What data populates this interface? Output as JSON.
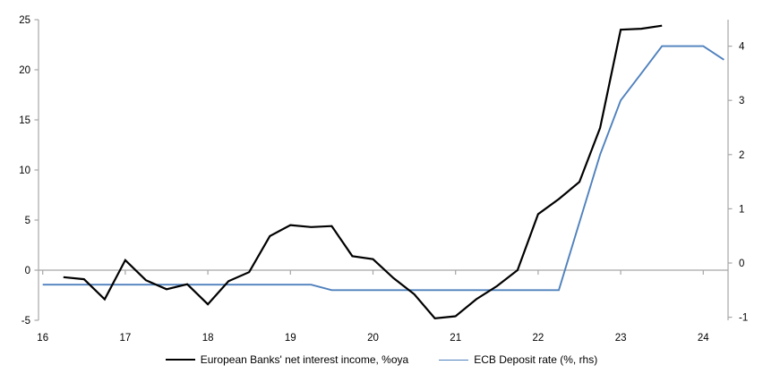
{
  "chart_data": {
    "type": "line",
    "title": "",
    "xlabel": "",
    "ylabel_left": "",
    "ylabel_right": "",
    "x_axis": {
      "tick_labels": [
        "16",
        "17",
        "18",
        "19",
        "20",
        "21",
        "22",
        "23",
        "24"
      ],
      "tick_values": [
        16,
        17,
        18,
        19,
        20,
        21,
        22,
        23,
        24
      ],
      "range": [
        15.95,
        24.3
      ]
    },
    "left_axis": {
      "tick_values": [
        -5,
        0,
        5,
        10,
        15,
        20,
        25
      ],
      "range": [
        -5,
        25
      ]
    },
    "right_axis": {
      "tick_values": [
        -1,
        0,
        1,
        2,
        3,
        4
      ],
      "range": [
        -1,
        4.5
      ]
    },
    "grid": "zero-line-only",
    "legend_position": "bottom-center",
    "series": [
      {
        "name": "European Banks' net interest income, %oya",
        "axis": "left",
        "color": "#000000",
        "stroke_width": 2.2,
        "points": [
          [
            16.25,
            -0.7
          ],
          [
            16.5,
            -0.9
          ],
          [
            16.75,
            -2.9
          ],
          [
            17.0,
            1.0
          ],
          [
            17.25,
            -1.0
          ],
          [
            17.5,
            -1.9
          ],
          [
            17.75,
            -1.4
          ],
          [
            18.0,
            -3.4
          ],
          [
            18.25,
            -1.1
          ],
          [
            18.5,
            -0.2
          ],
          [
            18.75,
            3.4
          ],
          [
            19.0,
            4.5
          ],
          [
            19.25,
            4.3
          ],
          [
            19.5,
            4.4
          ],
          [
            19.75,
            1.4
          ],
          [
            20.0,
            1.1
          ],
          [
            20.25,
            -0.8
          ],
          [
            20.5,
            -2.4
          ],
          [
            20.75,
            -4.8
          ],
          [
            21.0,
            -4.6
          ],
          [
            21.25,
            -2.9
          ],
          [
            21.5,
            -1.6
          ],
          [
            21.75,
            0.0
          ],
          [
            22.0,
            5.6
          ],
          [
            22.25,
            7.1
          ],
          [
            22.5,
            8.8
          ],
          [
            22.75,
            14.2
          ],
          [
            23.0,
            24.0
          ],
          [
            23.25,
            24.1
          ],
          [
            23.5,
            24.4
          ]
        ]
      },
      {
        "name": "ECB Deposit rate (%, rhs)",
        "axis": "right",
        "color": "#4f81bd",
        "stroke_width": 1.9,
        "points": [
          [
            16.0,
            -0.4
          ],
          [
            19.25,
            -0.4
          ],
          [
            19.5,
            -0.5
          ],
          [
            22.25,
            -0.5
          ],
          [
            22.5,
            0.75
          ],
          [
            22.75,
            2.0
          ],
          [
            23.0,
            3.0
          ],
          [
            23.25,
            3.5
          ],
          [
            23.5,
            4.0
          ],
          [
            24.0,
            4.0
          ],
          [
            24.25,
            3.75
          ]
        ]
      }
    ],
    "colors": {
      "axis": "#a6a6a6",
      "text": "#000000",
      "background": "#ffffff"
    }
  }
}
